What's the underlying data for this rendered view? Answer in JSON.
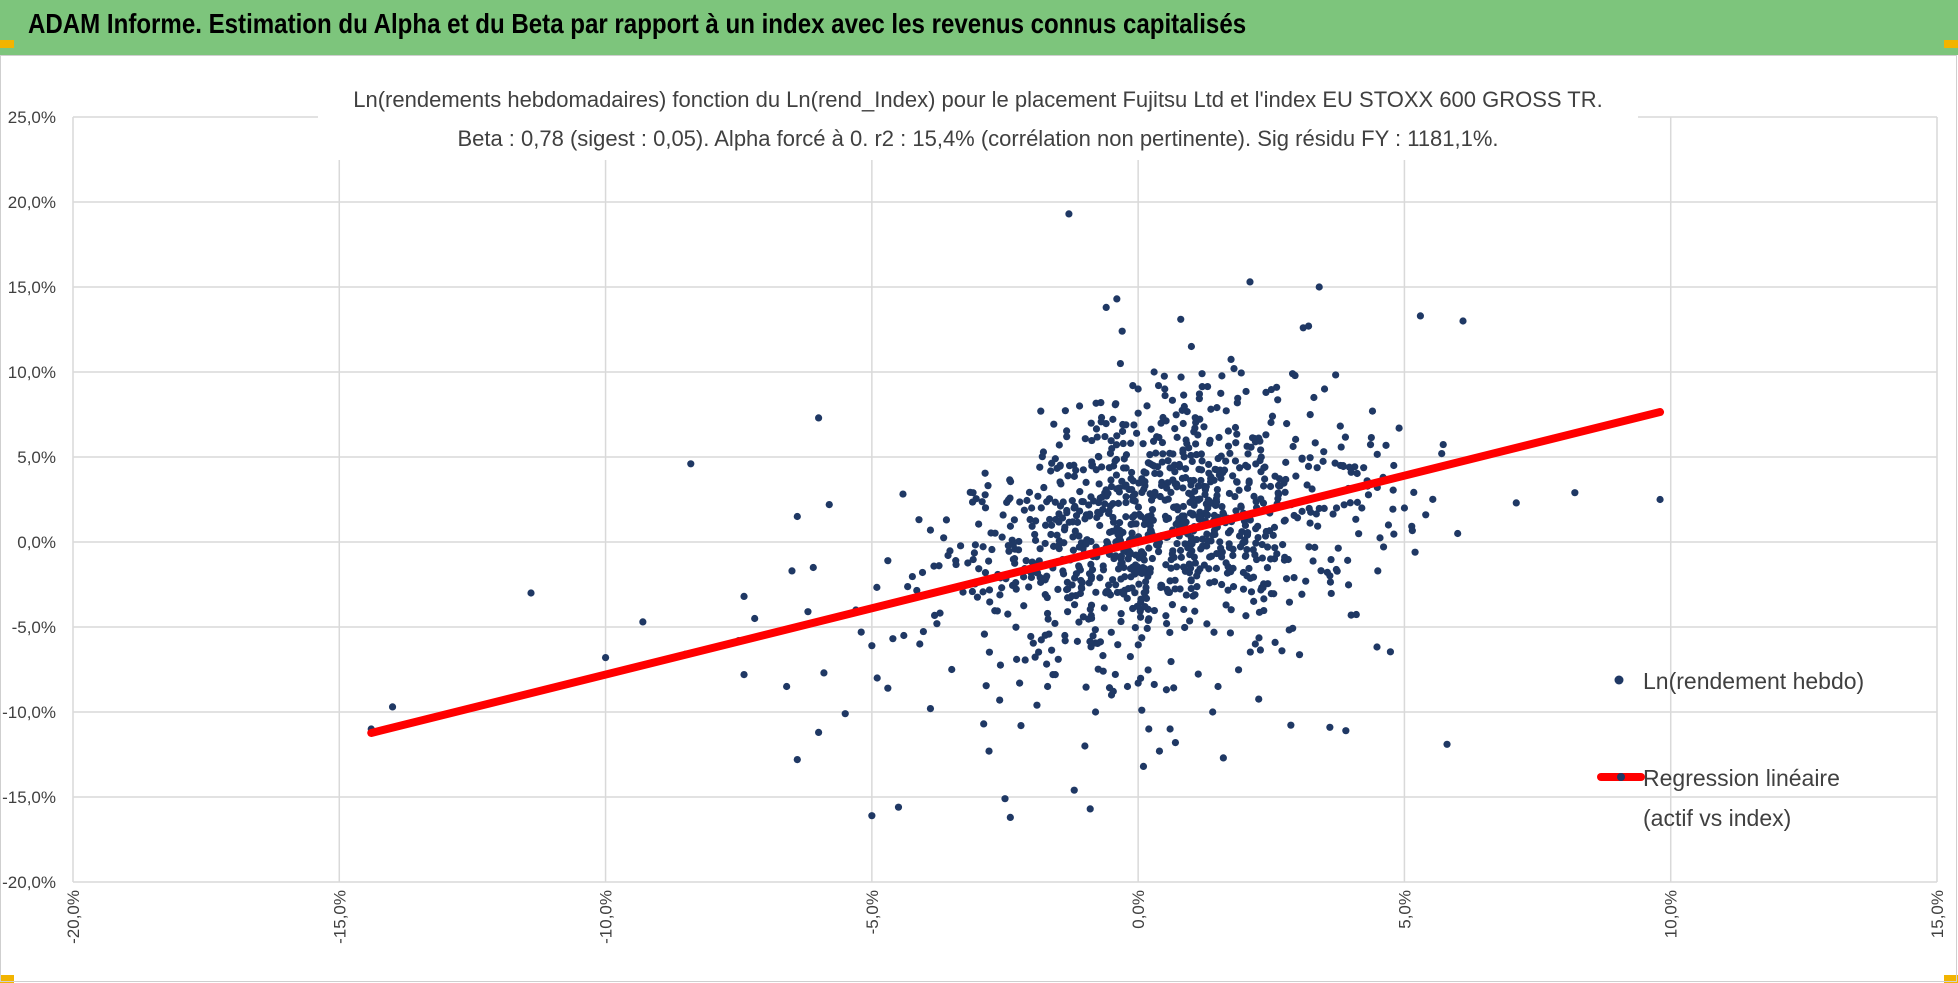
{
  "header": {
    "title": "ADAM Informe. Estimation du Alpha et du Beta par rapport à un index avec les revenus connus capitalisés"
  },
  "colors": {
    "header_bg": "#7dc57c",
    "accent_corner": "#f2b400",
    "points": "#1f3864",
    "regression": "#ff0000",
    "grid": "#d9d9d9"
  },
  "chart_data": {
    "type": "scatter",
    "title": "Ln(rendements hebdomadaires) fonction du Ln(rend_Index) pour le placement Fujitsu Ltd et l'index EU STOXX 600 GROSS TR.",
    "subtitle": "Beta : 0,78 (sigest : 0,05).  Alpha forcé à 0. r2 : 15,4% (corrélation non pertinente). Sig résidu FY : 1181,1%.",
    "xlim": [
      -0.2,
      0.15
    ],
    "ylim": [
      -0.2,
      0.25
    ],
    "x_ticks": [
      -0.2,
      -0.15,
      -0.1,
      -0.05,
      0.0,
      0.05,
      0.1,
      0.15
    ],
    "x_tick_labels": [
      "-20,0%",
      "-15,0%",
      "-10,0%",
      "-5,0%",
      "0,0%",
      "5,0%",
      "10,0%",
      "15,0%"
    ],
    "y_ticks": [
      -0.2,
      -0.15,
      -0.1,
      -0.05,
      0.0,
      0.05,
      0.1,
      0.15,
      0.2,
      0.25
    ],
    "y_tick_labels": [
      "-20,0%",
      "-15,0%",
      "-10,0%",
      "-5,0%",
      "0,0%",
      "5,0%",
      "10,0%",
      "15,0%",
      "20,0%",
      "25,0%"
    ],
    "grid": true,
    "legend_position": "right",
    "series": [
      {
        "name": "Ln(rendement hebdo)",
        "kind": "points",
        "points": [
          [
            -0.144,
            -0.11
          ],
          [
            -0.14,
            -0.097
          ],
          [
            -0.114,
            -0.03
          ],
          [
            -0.1,
            -0.068
          ],
          [
            -0.1,
            -0.078
          ],
          [
            -0.093,
            -0.047
          ],
          [
            -0.085,
            -0.066
          ],
          [
            -0.084,
            0.046
          ],
          [
            -0.075,
            -0.058
          ],
          [
            -0.074,
            -0.032
          ],
          [
            -0.074,
            -0.078
          ],
          [
            -0.072,
            -0.045
          ],
          [
            -0.066,
            -0.085
          ],
          [
            -0.065,
            -0.017
          ],
          [
            -0.064,
            0.015
          ],
          [
            -0.064,
            -0.128
          ],
          [
            -0.062,
            -0.041
          ],
          [
            -0.061,
            -0.015
          ],
          [
            -0.06,
            0.073
          ],
          [
            -0.06,
            -0.112
          ],
          [
            -0.059,
            -0.077
          ],
          [
            -0.058,
            0.022
          ],
          [
            -0.055,
            -0.101
          ],
          [
            -0.053,
            -0.04
          ],
          [
            -0.052,
            -0.053
          ],
          [
            -0.05,
            -0.061
          ],
          [
            -0.05,
            -0.161
          ],
          [
            -0.049,
            -0.08
          ],
          [
            -0.047,
            -0.011
          ],
          [
            -0.047,
            -0.086
          ],
          [
            -0.045,
            -0.156
          ],
          [
            -0.044,
            -0.055
          ],
          [
            -0.041,
            -0.06
          ],
          [
            -0.039,
            -0.098
          ],
          [
            -0.039,
            0.007
          ],
          [
            -0.036,
            0.013
          ],
          [
            -0.035,
            -0.075
          ],
          [
            -0.031,
            0.029
          ],
          [
            -0.029,
            -0.107
          ],
          [
            -0.028,
            -0.123
          ],
          [
            -0.026,
            -0.093
          ],
          [
            -0.025,
            -0.151
          ],
          [
            -0.024,
            -0.162
          ],
          [
            -0.022,
            -0.108
          ],
          [
            -0.02,
            0.02
          ],
          [
            -0.019,
            -0.096
          ],
          [
            -0.017,
            -0.085
          ],
          [
            -0.016,
            -0.078
          ],
          [
            -0.015,
            -0.069
          ],
          [
            -0.013,
            0.193
          ],
          [
            -0.012,
            -0.146
          ],
          [
            -0.011,
            0.08
          ],
          [
            -0.01,
            -0.12
          ],
          [
            -0.009,
            -0.157
          ],
          [
            -0.008,
            -0.1
          ],
          [
            -0.007,
            0.082
          ],
          [
            -0.006,
            0.138
          ],
          [
            -0.005,
            -0.09
          ],
          [
            -0.004,
            0.143
          ],
          [
            -0.003,
            0.124
          ],
          [
            -0.002,
            -0.085
          ],
          [
            -0.001,
            0.092
          ],
          [
            0.0,
            -0.083
          ],
          [
            0.0,
            0.09
          ],
          [
            0.001,
            -0.132
          ],
          [
            0.002,
            -0.11
          ],
          [
            0.003,
            0.1
          ],
          [
            0.004,
            -0.123
          ],
          [
            0.005,
            0.09
          ],
          [
            0.006,
            -0.11
          ],
          [
            0.007,
            -0.118
          ],
          [
            0.008,
            0.131
          ],
          [
            0.009,
            0.06
          ],
          [
            0.01,
            0.115
          ],
          [
            0.012,
            0.099
          ],
          [
            0.014,
            -0.1
          ],
          [
            0.015,
            -0.085
          ],
          [
            0.016,
            -0.127
          ],
          [
            0.018,
            0.102
          ],
          [
            0.021,
            0.153
          ],
          [
            0.022,
            -0.06
          ],
          [
            0.024,
            0.088
          ],
          [
            0.026,
            0.091
          ],
          [
            0.027,
            -0.064
          ],
          [
            0.029,
            0.099
          ],
          [
            0.031,
            0.126
          ],
          [
            0.032,
            0.127
          ],
          [
            0.033,
            0.085
          ],
          [
            0.034,
            0.15
          ],
          [
            0.035,
            0.09
          ],
          [
            0.036,
            -0.109
          ],
          [
            0.037,
            0.029
          ],
          [
            0.038,
            0.045
          ],
          [
            0.039,
            -0.111
          ],
          [
            0.04,
            0.041
          ],
          [
            0.04,
            -0.043
          ],
          [
            0.042,
            0.02
          ],
          [
            0.043,
            0.036
          ],
          [
            0.044,
            0.077
          ],
          [
            0.045,
            -0.017
          ],
          [
            0.046,
            0.038
          ],
          [
            0.047,
            0.01
          ],
          [
            0.048,
            0.045
          ],
          [
            0.049,
            0.067
          ],
          [
            0.05,
            0.02
          ],
          [
            0.052,
            -0.006
          ],
          [
            0.053,
            0.133
          ],
          [
            0.054,
            0.016
          ],
          [
            0.057,
            0.052
          ],
          [
            0.058,
            -0.119
          ],
          [
            0.06,
            0.005
          ],
          [
            0.061,
            0.13
          ],
          [
            0.071,
            0.023
          ],
          [
            0.078,
            0.061
          ],
          [
            0.082,
            0.029
          ],
          [
            0.098,
            0.025
          ]
        ]
      },
      {
        "name": "Regression linéaire (actif vs index)",
        "kind": "line",
        "slope": 0.78,
        "intercept": 0,
        "x_range": [
          -0.144,
          0.098
        ]
      }
    ]
  },
  "legend": {
    "points_label": "Ln(rendement hebdo)",
    "line_label_1": "Regression linéaire",
    "line_label_2": "(actif vs index)"
  }
}
